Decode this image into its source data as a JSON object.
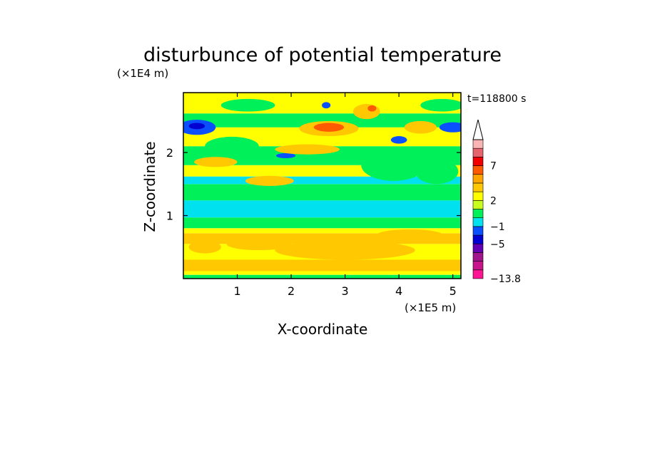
{
  "chart_data": {
    "type": "heatmap",
    "title": "disturbunce of potential temperature",
    "xlabel": "X-coordinate",
    "ylabel": "Z-coordinate",
    "x_unit": "(×1E5 m)",
    "y_unit": "(×1E4 m)",
    "time_label": "t=118800 s",
    "xlim": [
      0,
      5.15
    ],
    "ylim": [
      0,
      2.95
    ],
    "x_ticks": [
      1,
      2,
      3,
      4,
      5
    ],
    "y_ticks": [
      1,
      2
    ],
    "colorbar": {
      "levels": [
        -13.8,
        -9,
        -7,
        -5,
        -3,
        -1,
        0,
        1,
        2,
        3,
        5,
        7,
        9,
        12
      ],
      "tick_labels": [
        "7",
        "2",
        "-1",
        "-5",
        "-13.8"
      ],
      "colors": [
        "#ff1493",
        "#c8148c",
        "#a0148c",
        "#6400b4",
        "#0000d2",
        "#0a50ff",
        "#00e1f0",
        "#00f05a",
        "#c8ff1e",
        "#ffff00",
        "#ffc800",
        "#ffa500",
        "#ff5a00",
        "#f00000",
        "#e6646e",
        "#fab4b4"
      ],
      "extend": "max"
    },
    "field_bands": [
      {
        "z_from": 0.0,
        "z_to": 0.06,
        "value": "yellow-green"
      },
      {
        "z_from": 0.06,
        "z_to": 0.35,
        "value": "orange/yellow"
      },
      {
        "z_from": 0.35,
        "z_to": 0.75,
        "value": "yellow/orange"
      },
      {
        "z_from": 0.75,
        "z_to": 0.95,
        "value": "green"
      },
      {
        "z_from": 0.95,
        "z_to": 1.25,
        "value": "cyan"
      },
      {
        "z_from": 1.25,
        "z_to": 1.5,
        "value": "green"
      },
      {
        "z_from": 1.5,
        "z_to": 2.95,
        "value": "mixed yellow/orange/green"
      }
    ]
  }
}
